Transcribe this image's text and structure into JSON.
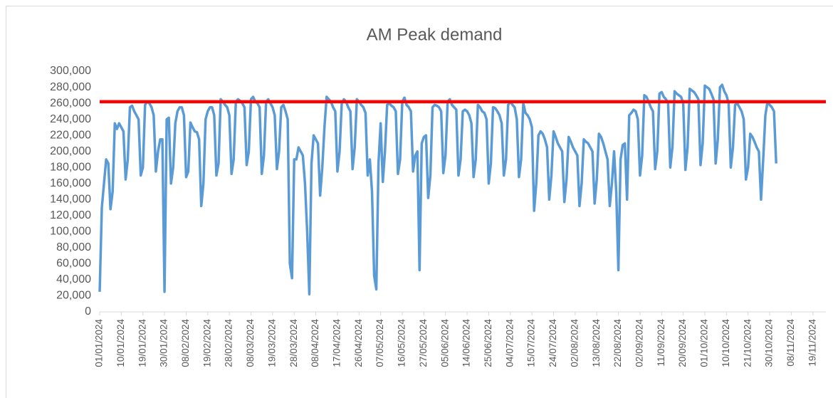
{
  "chart_data": {
    "type": "line",
    "title": "AM Peak demand",
    "categories": [
      "01/01/2024",
      null,
      null,
      null,
      null,
      null,
      null,
      null,
      null,
      null,
      "10/01/2024",
      null,
      null,
      null,
      null,
      null,
      null,
      null,
      null,
      null,
      "19/01/2024",
      null,
      null,
      null,
      null,
      null,
      null,
      null,
      null,
      null,
      "30/01/2024",
      null,
      null,
      null,
      null,
      null,
      null,
      null,
      null,
      null,
      "08/02/2024",
      null,
      null,
      null,
      null,
      null,
      null,
      null,
      null,
      null,
      "19/02/2024",
      null,
      null,
      null,
      null,
      null,
      null,
      null,
      null,
      null,
      "28/02/2024",
      null,
      null,
      null,
      null,
      null,
      null,
      null,
      null,
      null,
      "08/03/2024",
      null,
      null,
      null,
      null,
      null,
      null,
      null,
      null,
      null,
      "19/03/2024",
      null,
      null,
      null,
      null,
      null,
      null,
      null,
      null,
      null,
      "28/03/2024",
      null,
      null,
      null,
      null,
      null,
      null,
      null,
      null,
      null,
      "08/04/2024",
      null,
      null,
      null,
      null,
      null,
      null,
      null,
      null,
      null,
      "17/04/2024",
      null,
      null,
      null,
      null,
      null,
      null,
      null,
      null,
      null,
      "26/04/2024",
      null,
      null,
      null,
      null,
      null,
      null,
      null,
      null,
      null,
      "07/05/2024",
      null,
      null,
      null,
      null,
      null,
      null,
      null,
      null,
      null,
      "16/05/2024",
      null,
      null,
      null,
      null,
      null,
      null,
      null,
      null,
      null,
      "27/05/2024",
      null,
      null,
      null,
      null,
      null,
      null,
      null,
      null,
      null,
      "05/06/2024",
      null,
      null,
      null,
      null,
      null,
      null,
      null,
      null,
      null,
      "14/06/2024",
      null,
      null,
      null,
      null,
      null,
      null,
      null,
      null,
      null,
      "25/06/2024",
      null,
      null,
      null,
      null,
      null,
      null,
      null,
      null,
      null,
      "04/07/2024",
      null,
      null,
      null,
      null,
      null,
      null,
      null,
      null,
      null,
      "15/07/2024",
      null,
      null,
      null,
      null,
      null,
      null,
      null,
      null,
      null,
      "24/07/2024",
      null,
      null,
      null,
      null,
      null,
      null,
      null,
      null,
      null,
      "02/08/2024",
      null,
      null,
      null,
      null,
      null,
      null,
      null,
      null,
      null,
      "13/08/2024",
      null,
      null,
      null,
      null,
      null,
      null,
      null,
      null,
      null,
      "22/08/2024",
      null,
      null,
      null,
      null,
      null,
      null,
      null,
      null,
      null,
      "02/09/2024",
      null,
      null,
      null,
      null,
      null,
      null,
      null,
      null,
      null,
      "11/09/2024",
      null,
      null,
      null,
      null,
      null,
      null,
      null,
      null,
      null,
      "20/09/2024",
      null,
      null,
      null,
      null,
      null,
      null,
      null,
      null,
      null,
      "01/10/2024",
      null,
      null,
      null,
      null,
      null,
      null,
      null,
      null,
      null,
      "10/10/2024",
      null,
      null,
      null,
      null,
      null,
      null,
      null,
      null,
      null,
      "21/10/2024",
      null,
      null,
      null,
      null,
      null,
      null,
      null,
      null,
      null,
      "30/10/2024",
      null,
      null,
      null,
      null,
      null,
      null,
      null,
      null,
      null,
      "08/11/2024",
      null,
      null,
      null,
      null,
      null,
      null,
      null,
      null,
      null,
      "19/11/2024",
      null,
      null,
      null,
      null,
      null,
      null
    ],
    "series": [
      {
        "name": "AM Peak demand",
        "color": "#5b9bd5",
        "values": [
          25000,
          130000,
          160000,
          190000,
          185000,
          128000,
          150000,
          235000,
          228000,
          235000,
          230000,
          225000,
          165000,
          190000,
          255000,
          257000,
          250000,
          245000,
          240000,
          170000,
          180000,
          258000,
          262000,
          260000,
          255000,
          245000,
          175000,
          200000,
          215000,
          215000,
          25000,
          240000,
          242000,
          160000,
          180000,
          235000,
          250000,
          255000,
          255000,
          245000,
          168000,
          175000,
          236000,
          230000,
          225000,
          224000,
          215000,
          132000,
          160000,
          240000,
          250000,
          255000,
          255000,
          245000,
          170000,
          185000,
          265000,
          262000,
          258000,
          255000,
          245000,
          172000,
          190000,
          262000,
          265000,
          263000,
          260000,
          255000,
          183000,
          200000,
          265000,
          268000,
          262000,
          260000,
          255000,
          172000,
          195000,
          262000,
          265000,
          260000,
          255000,
          245000,
          178000,
          200000,
          255000,
          258000,
          250000,
          240000,
          60000,
          42000,
          190000,
          190000,
          205000,
          200000,
          195000,
          160000,
          100000,
          22000,
          185000,
          220000,
          215000,
          210000,
          145000,
          180000,
          230000,
          268000,
          265000,
          262000,
          255000,
          250000,
          175000,
          200000,
          260000,
          265000,
          262000,
          255000,
          250000,
          178000,
          205000,
          265000,
          262000,
          258000,
          255000,
          248000,
          170000,
          190000,
          150000,
          45000,
          28000,
          185000,
          235000,
          162000,
          200000,
          258000,
          260000,
          257000,
          255000,
          250000,
          172000,
          190000,
          262000,
          267000,
          258000,
          255000,
          250000,
          175000,
          195000,
          200000,
          52000,
          210000,
          218000,
          220000,
          142000,
          170000,
          255000,
          258000,
          257000,
          255000,
          250000,
          173000,
          195000,
          262000,
          265000,
          258000,
          255000,
          252000,
          170000,
          190000,
          250000,
          252000,
          250000,
          245000,
          235000,
          168000,
          190000,
          258000,
          255000,
          250000,
          248000,
          240000,
          160000,
          185000,
          255000,
          254000,
          250000,
          245000,
          235000,
          170000,
          190000,
          258000,
          262000,
          258000,
          255000,
          240000,
          168000,
          190000,
          260000,
          248000,
          245000,
          240000,
          230000,
          126000,
          160000,
          220000,
          225000,
          222000,
          215000,
          205000,
          140000,
          170000,
          225000,
          218000,
          210000,
          205000,
          200000,
          137000,
          165000,
          218000,
          212000,
          205000,
          200000,
          195000,
          132000,
          160000,
          215000,
          212000,
          210000,
          205000,
          200000,
          135000,
          165000,
          222000,
          218000,
          210000,
          200000,
          190000,
          132000,
          160000,
          200000,
          150000,
          52000,
          190000,
          208000,
          210000,
          140000,
          245000,
          248000,
          252000,
          250000,
          240000,
          170000,
          195000,
          270000,
          268000,
          262000,
          255000,
          250000,
          178000,
          200000,
          272000,
          274000,
          268000,
          265000,
          260000,
          180000,
          205000,
          275000,
          272000,
          270000,
          268000,
          260000,
          177000,
          205000,
          278000,
          276000,
          274000,
          270000,
          265000,
          183000,
          210000,
          282000,
          280000,
          278000,
          272000,
          265000,
          185000,
          215000,
          280000,
          283000,
          275000,
          270000,
          260000,
          180000,
          205000,
          258000,
          260000,
          255000,
          250000,
          240000,
          165000,
          180000,
          222000,
          218000,
          212000,
          205000,
          200000,
          140000,
          190000,
          245000,
          262000,
          258000,
          255000,
          250000,
          185000,
          null,
          null,
          null,
          null,
          null,
          null,
          null,
          null,
          null,
          null,
          null,
          null,
          null,
          null,
          null,
          null,
          null,
          null,
          null,
          null,
          null,
          null,
          null
        ]
      }
    ],
    "threshold": 262000,
    "threshold_color": "#ff0000",
    "ylim": [
      0,
      300000
    ],
    "yticks": [
      0,
      {
        "value": 20000,
        "label": "20,000"
      },
      {
        "value": 40000,
        "label": "40,000"
      },
      {
        "value": 60000,
        "label": "60,000"
      },
      {
        "value": 80000,
        "label": "80,000"
      },
      {
        "value": 100000,
        "label": "100,000"
      },
      {
        "value": 120000,
        "label": "120,000"
      },
      {
        "value": 140000,
        "label": "140,000"
      },
      {
        "value": 160000,
        "label": "160,000"
      },
      {
        "value": 180000,
        "label": "180,000"
      },
      {
        "value": 200000,
        "label": "200,000"
      },
      {
        "value": 220000,
        "label": "220,000"
      },
      {
        "value": 240000,
        "label": "240,000"
      },
      {
        "value": 260000,
        "label": "260,000"
      },
      {
        "value": 280000,
        "label": "280,000"
      },
      {
        "value": 300000,
        "label": "300,000"
      }
    ],
    "grid": false
  }
}
